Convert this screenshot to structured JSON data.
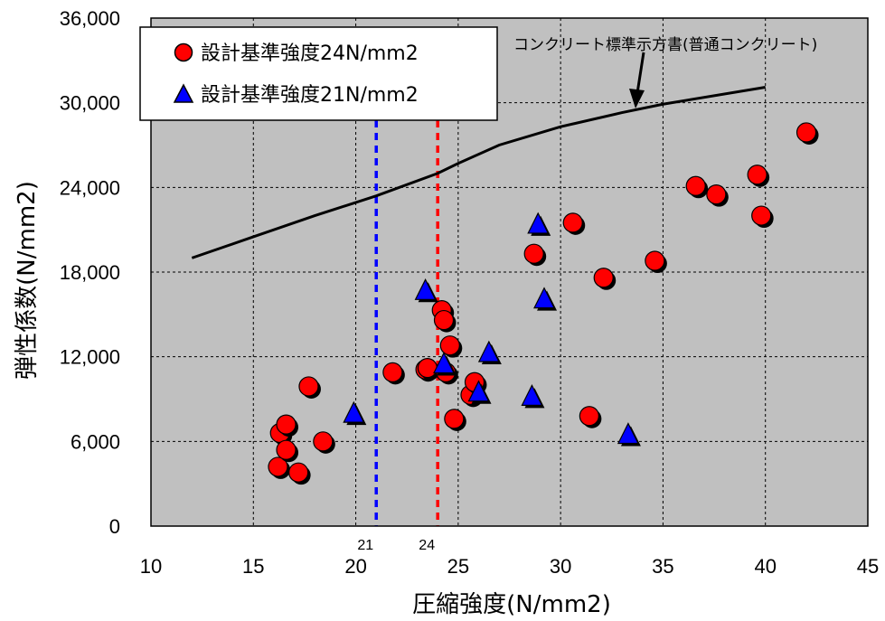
{
  "chart_data": {
    "type": "scatter",
    "xlabel": "圧縮強度(N/mm2)",
    "ylabel": "弾性係数(N/mm2)",
    "xlim": [
      10,
      45
    ],
    "ylim": [
      0,
      36000
    ],
    "x_ticks": [
      10,
      15,
      20,
      25,
      30,
      35,
      40,
      45
    ],
    "y_ticks": [
      0,
      6000,
      12000,
      18000,
      24000,
      30000,
      36000
    ],
    "x_tick_labels": [
      "10",
      "15",
      "20",
      "25",
      "30",
      "35",
      "40",
      "45"
    ],
    "y_tick_labels": [
      "0",
      "6,000",
      "12,000",
      "18,000",
      "24,000",
      "30,000",
      "36,000"
    ],
    "grid": true,
    "background": "#c0c0c0",
    "legend_position": "top-left",
    "series": [
      {
        "name": "設計基準強度24N/mm2",
        "marker": "circle",
        "color": "#ff0000",
        "points": [
          [
            16.2,
            4200
          ],
          [
            16.3,
            6600
          ],
          [
            16.6,
            7200
          ],
          [
            16.6,
            5400
          ],
          [
            17.2,
            3800
          ],
          [
            17.7,
            9900
          ],
          [
            18.4,
            6000
          ],
          [
            21.8,
            10900
          ],
          [
            23.4,
            11100
          ],
          [
            23.5,
            11200
          ],
          [
            24.2,
            15300
          ],
          [
            24.3,
            14600
          ],
          [
            24.4,
            10900
          ],
          [
            24.6,
            12800
          ],
          [
            24.8,
            7600
          ],
          [
            25.6,
            9300
          ],
          [
            25.8,
            10200
          ],
          [
            28.7,
            19300
          ],
          [
            30.6,
            21500
          ],
          [
            31.4,
            7800
          ],
          [
            32.1,
            17600
          ],
          [
            34.6,
            18800
          ],
          [
            36.6,
            24100
          ],
          [
            37.6,
            23500
          ],
          [
            39.6,
            24900
          ],
          [
            39.8,
            22000
          ],
          [
            42.0,
            27900
          ]
        ]
      },
      {
        "name": "設計基準強度21N/mm2",
        "marker": "triangle",
        "color": "#0000ff",
        "points": [
          [
            19.9,
            8000
          ],
          [
            23.4,
            16700
          ],
          [
            24.3,
            11500
          ],
          [
            26.0,
            9500
          ],
          [
            26.5,
            12300
          ],
          [
            28.6,
            9200
          ],
          [
            28.9,
            21400
          ],
          [
            29.2,
            16100
          ],
          [
            33.3,
            6500
          ]
        ]
      }
    ],
    "standard_curve": {
      "label": "コンクリート標準示方書(普通コンクリート)",
      "points": [
        [
          12,
          19000
        ],
        [
          15,
          20500
        ],
        [
          18,
          22000
        ],
        [
          21,
          23400
        ],
        [
          24,
          25000
        ],
        [
          25,
          25700
        ],
        [
          27,
          27000
        ],
        [
          30,
          28300
        ],
        [
          33,
          29300
        ],
        [
          35,
          29900
        ],
        [
          40,
          31100
        ]
      ]
    },
    "reference_lines": [
      {
        "x": 21,
        "label": "21",
        "color": "#0000ff"
      },
      {
        "x": 24,
        "label": "24",
        "color": "#ff0000"
      }
    ]
  }
}
